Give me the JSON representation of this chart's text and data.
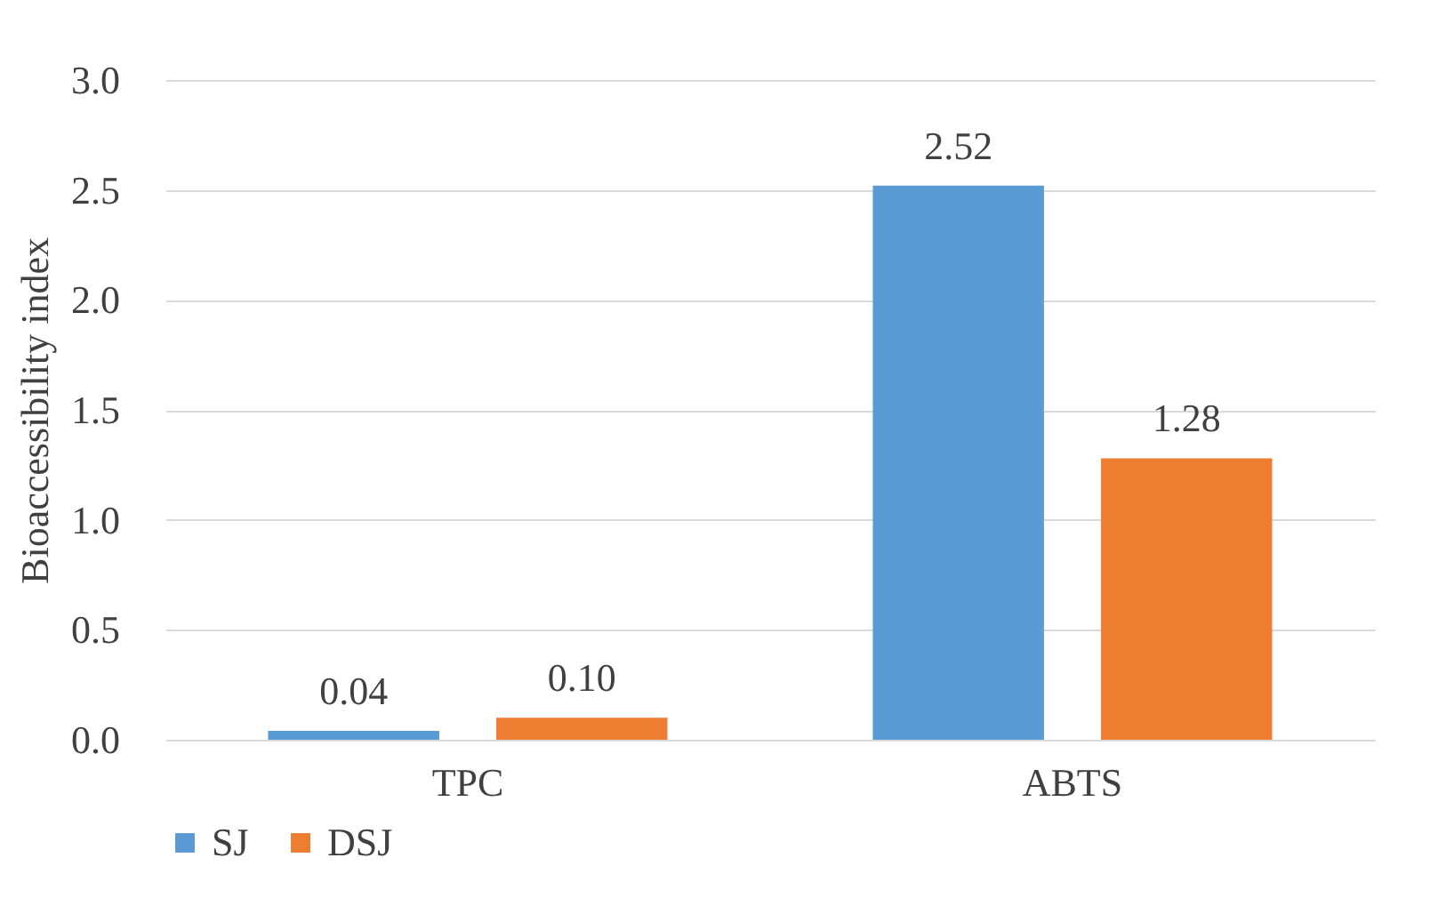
{
  "chart_data": {
    "type": "bar",
    "ylabel": "Bioaccessibility index",
    "categories": [
      "TPC",
      "ABTS"
    ],
    "series": [
      {
        "name": "SJ",
        "color": "#5b9bd5",
        "values": [
          0.04,
          2.52
        ],
        "value_labels": [
          "0.04",
          "2.52"
        ]
      },
      {
        "name": "DSJ",
        "color": "#ed7d31",
        "values": [
          0.1,
          1.28
        ],
        "value_labels": [
          "0.10",
          "1.28"
        ]
      }
    ],
    "ylim": [
      0,
      3
    ],
    "yticks": [
      {
        "value": 0,
        "label": "0.0"
      },
      {
        "value": 0.5,
        "label": "0.5"
      },
      {
        "value": 1,
        "label": "1.0"
      },
      {
        "value": 1.5,
        "label": "1.5"
      },
      {
        "value": 2,
        "label": "2.0"
      },
      {
        "value": 2.5,
        "label": "2.5"
      },
      {
        "value": 3,
        "label": "3.0"
      }
    ],
    "grid": "y",
    "legend": "bottom"
  }
}
